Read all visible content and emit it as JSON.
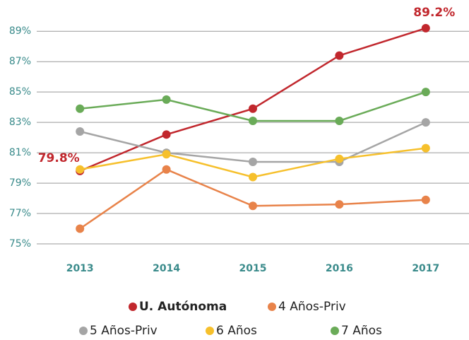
{
  "chart_data": {
    "type": "line",
    "categories": [
      "2013",
      "2014",
      "2015",
      "2016",
      "2017"
    ],
    "series": [
      {
        "name": "U. Autónoma",
        "color": "#c1272d",
        "values": [
          79.8,
          82.2,
          83.9,
          87.4,
          89.2
        ],
        "value_labels": [
          "79.8%",
          null,
          null,
          null,
          "89.2%"
        ]
      },
      {
        "name": "4 Años-Priv",
        "color": "#e8834a",
        "values": [
          76.0,
          79.9,
          77.5,
          77.6,
          77.9
        ]
      },
      {
        "name": "5 Años-Priv",
        "color": "#a5a5a5",
        "values": [
          82.4,
          81.0,
          80.4,
          80.4,
          83.0
        ]
      },
      {
        "name": "6 Años",
        "color": "#f6c02c",
        "values": [
          79.9,
          80.9,
          79.4,
          80.6,
          81.3
        ]
      },
      {
        "name": "7 Años",
        "color": "#6aab58",
        "values": [
          83.9,
          84.5,
          83.1,
          83.1,
          85.0
        ]
      }
    ],
    "ylim": [
      75,
      90.5
    ],
    "yticks": [
      {
        "value": 75,
        "label": "75%"
      },
      {
        "value": 77,
        "label": "77%"
      },
      {
        "value": 79,
        "label": "79%"
      },
      {
        "value": 81,
        "label": "81%"
      },
      {
        "value": 83,
        "label": "83%"
      },
      {
        "value": 85,
        "label": "85%"
      },
      {
        "value": 87,
        "label": "87%"
      },
      {
        "value": 89,
        "label": "89%"
      }
    ],
    "grid": true
  }
}
